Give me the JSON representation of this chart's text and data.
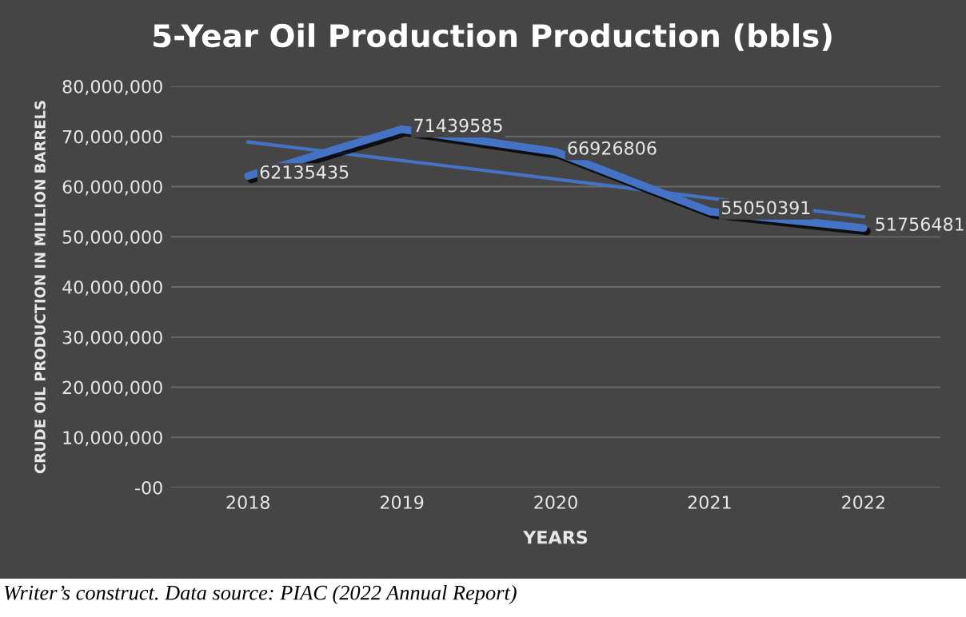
{
  "chart_data": {
    "type": "line",
    "title": "5-Year Oil Production Production (bbls)",
    "xlabel": "YEARS",
    "ylabel": "CRUDE OIL PRODUCTION IN MILLION BARRELS",
    "categories": [
      "2018",
      "2019",
      "2020",
      "2021",
      "2022"
    ],
    "series": [
      {
        "color": "#4472c4",
        "values": [
          62135435,
          71439585,
          66926806,
          55050391,
          51756481
        ],
        "value_labels": [
          "62135435",
          "71439585",
          "66926806",
          "55050391",
          "51756481"
        ]
      },
      {
        "type": "line",
        "color": "#4472c4",
        "values": [
          68900000,
          65200000,
          61500000,
          57700000,
          54000000
        ]
      }
    ],
    "ylim": [
      0,
      80000000
    ],
    "yticks": [
      {
        "value": 0,
        "label": "-00"
      },
      {
        "value": 10000000,
        "label": "10,000,000"
      },
      {
        "value": 20000000,
        "label": "20,000,000"
      },
      {
        "value": 30000000,
        "label": "30,000,000"
      },
      {
        "value": 40000000,
        "label": "40,000,000"
      },
      {
        "value": 50000000,
        "label": "50,000,000"
      },
      {
        "value": 60000000,
        "label": "60,000,000"
      },
      {
        "value": 70000000,
        "label": "70,000,000"
      },
      {
        "value": 80000000,
        "label": "80,000,000"
      }
    ],
    "grid": "y",
    "annotations": [
      "Writer’s construct. Data source: PIAC (2022 Annual Report)"
    ]
  }
}
